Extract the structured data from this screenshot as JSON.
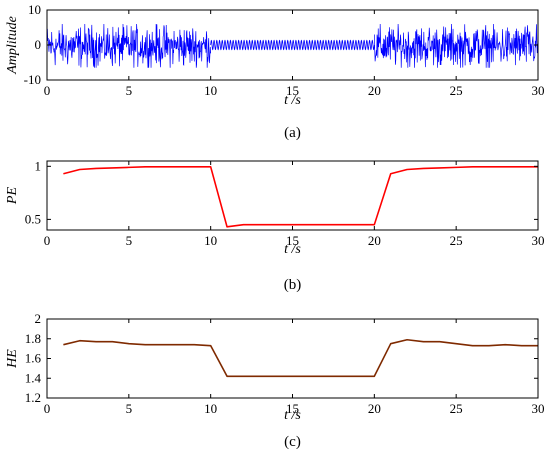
{
  "chart_data": [
    {
      "id": "a",
      "type": "line",
      "caption": "(a)",
      "xlabel": "t /s",
      "ylabel": "Amplitude",
      "xlim": [
        0,
        30
      ],
      "ylim": [
        -10,
        10
      ],
      "xticks": [
        "0",
        "5",
        "10",
        "15",
        "20",
        "25",
        "30"
      ],
      "yticks": [
        "-10",
        "0",
        "10"
      ],
      "ytick_values": [
        -10,
        0,
        10
      ],
      "series": [
        {
          "color": "#0000ff",
          "segments": [
            {
              "x_range": [
                0,
                10
              ],
              "kind": "noise",
              "amplitude_range": [
                -6.5,
                6
              ]
            },
            {
              "x_range": [
                10,
                20
              ],
              "kind": "sine",
              "amplitude": 1.3,
              "cycles": 60
            },
            {
              "x_range": [
                20,
                30
              ],
              "kind": "noise",
              "amplitude_range": [
                -6.5,
                6
              ]
            }
          ]
        }
      ]
    },
    {
      "id": "b",
      "type": "line",
      "caption": "(b)",
      "xlabel": "t /s",
      "ylabel": "PE",
      "xlim": [
        0,
        30
      ],
      "ylim": [
        0.4,
        1.05
      ],
      "xticks": [
        "0",
        "5",
        "10",
        "15",
        "20",
        "25",
        "30"
      ],
      "yticks": [
        "0.5",
        "1"
      ],
      "ytick_values": [
        0.5,
        1
      ],
      "series": [
        {
          "color": "#ff0000",
          "x": [
            1,
            2,
            3,
            4,
            5,
            6,
            7,
            8,
            9,
            10,
            11,
            12,
            13,
            14,
            15,
            16,
            17,
            18,
            19,
            20,
            21,
            22,
            23,
            24,
            25,
            26,
            27,
            28,
            29,
            30
          ],
          "y": [
            0.93,
            0.97,
            0.98,
            0.985,
            0.99,
            0.995,
            0.995,
            0.995,
            0.995,
            0.995,
            0.43,
            0.45,
            0.45,
            0.45,
            0.45,
            0.45,
            0.45,
            0.45,
            0.45,
            0.45,
            0.93,
            0.97,
            0.98,
            0.985,
            0.99,
            0.995,
            0.995,
            0.995,
            0.995,
            0.995
          ]
        }
      ]
    },
    {
      "id": "c",
      "type": "line",
      "caption": "(c)",
      "xlabel": "t /s",
      "ylabel": "HE",
      "xlim": [
        0,
        30
      ],
      "ylim": [
        1.2,
        2
      ],
      "xticks": [
        "0",
        "5",
        "10",
        "15",
        "20",
        "25",
        "30"
      ],
      "yticks": [
        "1.2",
        "1.4",
        "1.6",
        "1.8",
        "2"
      ],
      "ytick_values": [
        1.2,
        1.4,
        1.6,
        1.8,
        2
      ],
      "series": [
        {
          "color": "#7f2a00",
          "x": [
            1,
            2,
            3,
            4,
            5,
            6,
            7,
            8,
            9,
            10,
            11,
            12,
            13,
            14,
            15,
            16,
            17,
            18,
            19,
            20,
            21,
            22,
            23,
            24,
            25,
            26,
            27,
            28,
            29,
            30
          ],
          "y": [
            1.74,
            1.78,
            1.77,
            1.77,
            1.75,
            1.74,
            1.74,
            1.74,
            1.74,
            1.73,
            1.42,
            1.42,
            1.42,
            1.42,
            1.42,
            1.42,
            1.42,
            1.42,
            1.42,
            1.42,
            1.75,
            1.79,
            1.77,
            1.77,
            1.75,
            1.73,
            1.73,
            1.74,
            1.73,
            1.73
          ]
        }
      ]
    }
  ]
}
